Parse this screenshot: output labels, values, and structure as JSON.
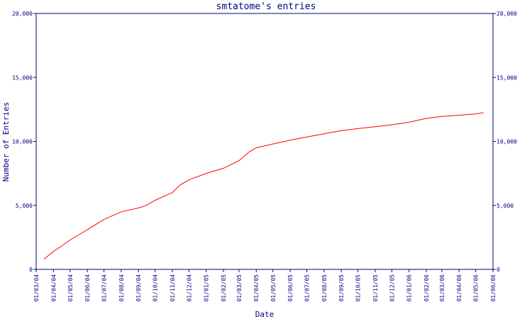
{
  "chart_data": {
    "type": "line",
    "title": "smtatome's entries",
    "xlabel": "Date",
    "ylabel": "Number of Entries",
    "ylim": [
      0,
      20000
    ],
    "yticks": [
      0,
      5000,
      10000,
      15000,
      20000
    ],
    "ytick_labels": [
      "0",
      "5,000",
      "10,000",
      "15,000",
      "20,000"
    ],
    "xlim": [
      "2004-03-01",
      "2006-06-01"
    ],
    "xtick_labels": [
      "01/03/04",
      "01/04/04",
      "01/05/04",
      "01/06/04",
      "01/07/04",
      "01/08/04",
      "01/09/04",
      "01/10/04",
      "01/11/04",
      "01/12/04",
      "01/01/05",
      "01/02/05",
      "01/03/05",
      "01/04/05",
      "01/05/05",
      "01/06/05",
      "01/07/05",
      "01/08/05",
      "01/09/05",
      "01/10/05",
      "01/11/05",
      "01/12/05",
      "01/01/06",
      "01/02/06",
      "01/03/06",
      "01/04/06",
      "01/05/06",
      "01/06/06"
    ],
    "grid": false,
    "line_color": "#ff0000",
    "axis_color": "#000080",
    "series": [
      {
        "x": [
          "2004-03-15",
          "2004-04-01",
          "2004-04-15",
          "2004-05-01",
          "2004-06-01",
          "2004-07-01",
          "2004-08-01",
          "2004-09-01",
          "2004-09-15",
          "2004-10-01",
          "2004-11-01",
          "2004-11-15",
          "2004-12-01",
          "2005-01-01",
          "2005-02-01",
          "2005-03-01",
          "2005-03-20",
          "2005-04-01",
          "2005-05-01",
          "2005-06-01",
          "2005-07-01",
          "2005-08-01",
          "2005-09-01",
          "2005-10-01",
          "2005-11-01",
          "2005-12-01",
          "2006-01-01",
          "2006-02-01",
          "2006-03-01",
          "2006-04-01",
          "2006-05-01",
          "2006-05-15"
        ],
        "y": [
          800,
          1400,
          1800,
          2300,
          3100,
          3900,
          4500,
          4800,
          5000,
          5400,
          6000,
          6600,
          7000,
          7500,
          7900,
          8500,
          9200,
          9500,
          9800,
          10100,
          10350,
          10600,
          10850,
          11000,
          11150,
          11300,
          11500,
          11800,
          11950,
          12050,
          12150,
          12250
        ]
      }
    ]
  }
}
